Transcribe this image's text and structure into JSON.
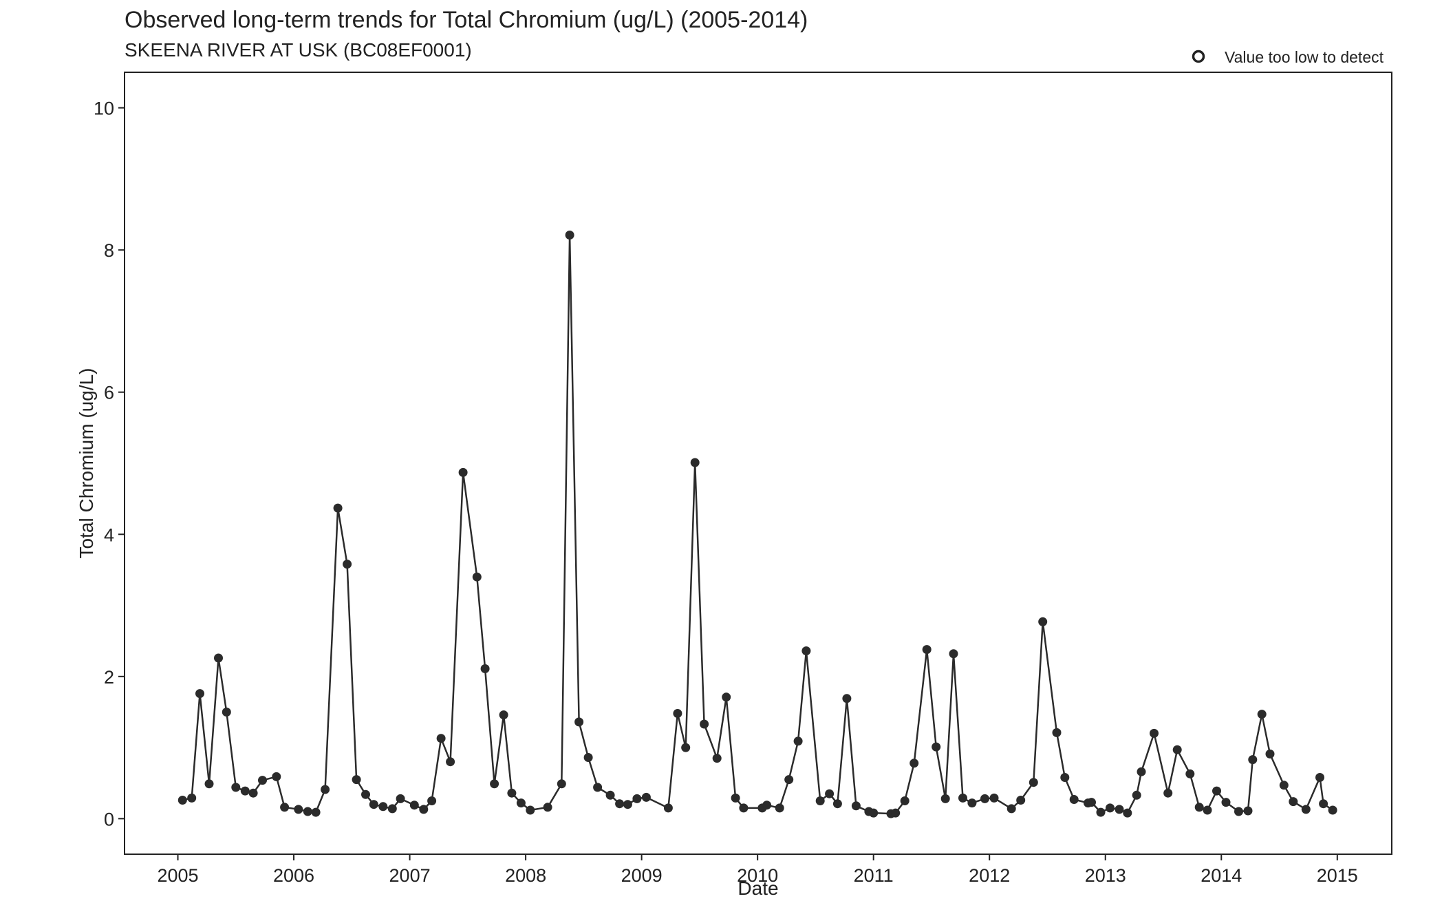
{
  "chart_data": {
    "type": "line",
    "title": "Observed long-term trends for Total Chromium (ug/L) (2005-2014)",
    "subtitle": "SKEENA RIVER AT USK (BC08EF0001)",
    "xlabel": "Date",
    "ylabel": "Total Chromium (ug/L)",
    "xlim": [
      2004.54,
      2015.47
    ],
    "ylim": [
      -0.5,
      10.5
    ],
    "x_ticks": [
      2005,
      2006,
      2007,
      2008,
      2009,
      2010,
      2011,
      2012,
      2013,
      2014,
      2015
    ],
    "x_tick_labels": [
      "2005",
      "2006",
      "2007",
      "2008",
      "2009",
      "2010",
      "2011",
      "2012",
      "2013",
      "2014",
      "2015"
    ],
    "y_ticks": [
      0,
      2,
      4,
      6,
      8,
      10
    ],
    "y_tick_labels": [
      "0",
      "2",
      "4",
      "6",
      "8",
      "10"
    ],
    "grid": false,
    "legend": {
      "position": "top-right",
      "entries": [
        {
          "label": "Value too low to detect",
          "marker": "open-circle"
        }
      ]
    },
    "colors": {
      "series": "#2b2b2b",
      "axis": "#222222",
      "background": "#ffffff"
    },
    "series": [
      {
        "points": [
          [
            2005.04,
            0.26
          ],
          [
            2005.12,
            0.29
          ],
          [
            2005.19,
            1.76
          ],
          [
            2005.27,
            0.49
          ],
          [
            2005.35,
            2.26
          ],
          [
            2005.42,
            1.5
          ],
          [
            2005.5,
            0.44
          ],
          [
            2005.58,
            0.39
          ],
          [
            2005.65,
            0.36
          ],
          [
            2005.73,
            0.54
          ],
          [
            2005.85,
            0.59
          ],
          [
            2005.92,
            0.16
          ],
          [
            2006.04,
            0.13
          ],
          [
            2006.12,
            0.1
          ],
          [
            2006.19,
            0.09
          ],
          [
            2006.27,
            0.41
          ],
          [
            2006.38,
            4.37
          ],
          [
            2006.46,
            3.58
          ],
          [
            2006.54,
            0.55
          ],
          [
            2006.62,
            0.34
          ],
          [
            2006.69,
            0.2
          ],
          [
            2006.77,
            0.17
          ],
          [
            2006.85,
            0.14
          ],
          [
            2006.92,
            0.28
          ],
          [
            2007.04,
            0.19
          ],
          [
            2007.12,
            0.13
          ],
          [
            2007.19,
            0.25
          ],
          [
            2007.27,
            1.13
          ],
          [
            2007.35,
            0.8
          ],
          [
            2007.46,
            4.87
          ],
          [
            2007.58,
            3.4
          ],
          [
            2007.65,
            2.11
          ],
          [
            2007.73,
            0.49
          ],
          [
            2007.81,
            1.46
          ],
          [
            2007.88,
            0.36
          ],
          [
            2007.96,
            0.22
          ],
          [
            2008.04,
            0.12
          ],
          [
            2008.19,
            0.16
          ],
          [
            2008.31,
            0.49
          ],
          [
            2008.38,
            8.21
          ],
          [
            2008.46,
            1.36
          ],
          [
            2008.54,
            0.86
          ],
          [
            2008.62,
            0.44
          ],
          [
            2008.73,
            0.33
          ],
          [
            2008.81,
            0.21
          ],
          [
            2008.88,
            0.2
          ],
          [
            2008.96,
            0.28
          ],
          [
            2009.04,
            0.3
          ],
          [
            2009.23,
            0.15
          ],
          [
            2009.31,
            1.48
          ],
          [
            2009.38,
            1.0
          ],
          [
            2009.46,
            5.01
          ],
          [
            2009.54,
            1.33
          ],
          [
            2009.65,
            0.85
          ],
          [
            2009.73,
            1.71
          ],
          [
            2009.81,
            0.29
          ],
          [
            2009.88,
            0.15
          ],
          [
            2010.04,
            0.15
          ],
          [
            2010.08,
            0.19
          ],
          [
            2010.19,
            0.15
          ],
          [
            2010.27,
            0.55
          ],
          [
            2010.35,
            1.09
          ],
          [
            2010.42,
            2.36
          ],
          [
            2010.54,
            0.25
          ],
          [
            2010.62,
            0.35
          ],
          [
            2010.69,
            0.21
          ],
          [
            2010.77,
            1.69
          ],
          [
            2010.85,
            0.18
          ],
          [
            2010.96,
            0.1
          ],
          [
            2011.0,
            0.08
          ],
          [
            2011.15,
            0.07
          ],
          [
            2011.19,
            0.08
          ],
          [
            2011.27,
            0.25
          ],
          [
            2011.35,
            0.78
          ],
          [
            2011.46,
            2.38
          ],
          [
            2011.54,
            1.01
          ],
          [
            2011.62,
            0.28
          ],
          [
            2011.69,
            2.32
          ],
          [
            2011.77,
            0.29
          ],
          [
            2011.85,
            0.22
          ],
          [
            2011.96,
            0.28
          ],
          [
            2012.04,
            0.29
          ],
          [
            2012.19,
            0.14
          ],
          [
            2012.27,
            0.26
          ],
          [
            2012.38,
            0.51
          ],
          [
            2012.46,
            2.77
          ],
          [
            2012.58,
            1.21
          ],
          [
            2012.65,
            0.58
          ],
          [
            2012.73,
            0.27
          ],
          [
            2012.85,
            0.22
          ],
          [
            2012.88,
            0.23
          ],
          [
            2012.96,
            0.09
          ],
          [
            2013.04,
            0.15
          ],
          [
            2013.12,
            0.13
          ],
          [
            2013.19,
            0.08
          ],
          [
            2013.27,
            0.33
          ],
          [
            2013.31,
            0.66
          ],
          [
            2013.42,
            1.2
          ],
          [
            2013.54,
            0.36
          ],
          [
            2013.62,
            0.97
          ],
          [
            2013.73,
            0.63
          ],
          [
            2013.81,
            0.16
          ],
          [
            2013.88,
            0.12
          ],
          [
            2013.96,
            0.39
          ],
          [
            2014.04,
            0.23
          ],
          [
            2014.15,
            0.1
          ],
          [
            2014.23,
            0.11
          ],
          [
            2014.27,
            0.83
          ],
          [
            2014.35,
            1.47
          ],
          [
            2014.42,
            0.91
          ],
          [
            2014.54,
            0.47
          ],
          [
            2014.62,
            0.24
          ],
          [
            2014.73,
            0.13
          ],
          [
            2014.85,
            0.58
          ],
          [
            2014.88,
            0.21
          ],
          [
            2014.96,
            0.12
          ]
        ]
      }
    ]
  }
}
